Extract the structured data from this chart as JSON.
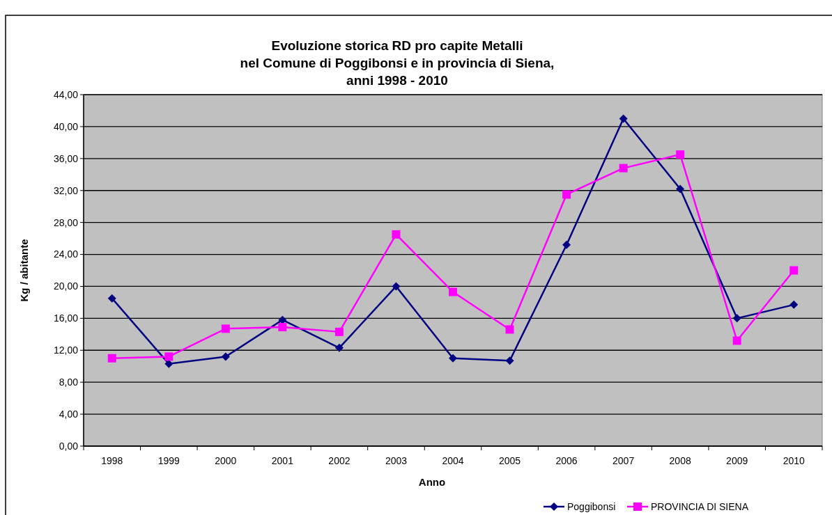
{
  "chart_data": {
    "type": "line",
    "title": "Evoluzione storica RD pro capite Metalli\nnel Comune di Poggibonsi e in provincia di Siena,\nanni 1998 - 2010",
    "xlabel": "Anno",
    "ylabel": "Kg / abitante",
    "categories": [
      "1998",
      "1999",
      "2000",
      "2001",
      "2002",
      "2003",
      "2004",
      "2005",
      "2006",
      "2007",
      "2008",
      "2009",
      "2010"
    ],
    "series": [
      {
        "name": "Poggibonsi",
        "color": "#000080",
        "marker": "diamond",
        "values": [
          18.5,
          10.3,
          11.2,
          15.8,
          12.3,
          20.0,
          11.0,
          10.7,
          25.2,
          41.0,
          32.2,
          16.0,
          17.7
        ]
      },
      {
        "name": "PROVINCIA DI SIENA",
        "color": "#ff00ff",
        "marker": "square",
        "values": [
          11.0,
          11.2,
          14.7,
          14.9,
          14.3,
          26.5,
          19.3,
          14.6,
          31.5,
          34.8,
          36.5,
          13.2,
          22.0
        ]
      }
    ],
    "ylim": [
      0,
      44
    ],
    "yticks": [
      {
        "value": 0,
        "label": "0,00"
      },
      {
        "value": 4,
        "label": "4,00"
      },
      {
        "value": 8,
        "label": "8,00"
      },
      {
        "value": 12,
        "label": "12,00"
      },
      {
        "value": 16,
        "label": "16,00"
      },
      {
        "value": 20,
        "label": "20,00"
      },
      {
        "value": 24,
        "label": "24,00"
      },
      {
        "value": 28,
        "label": "28,00"
      },
      {
        "value": 32,
        "label": "32,00"
      },
      {
        "value": 36,
        "label": "36,00"
      },
      {
        "value": 40,
        "label": "40,00"
      },
      {
        "value": 44,
        "label": "44,00"
      }
    ],
    "grid": "y",
    "legend": "bottom right"
  }
}
